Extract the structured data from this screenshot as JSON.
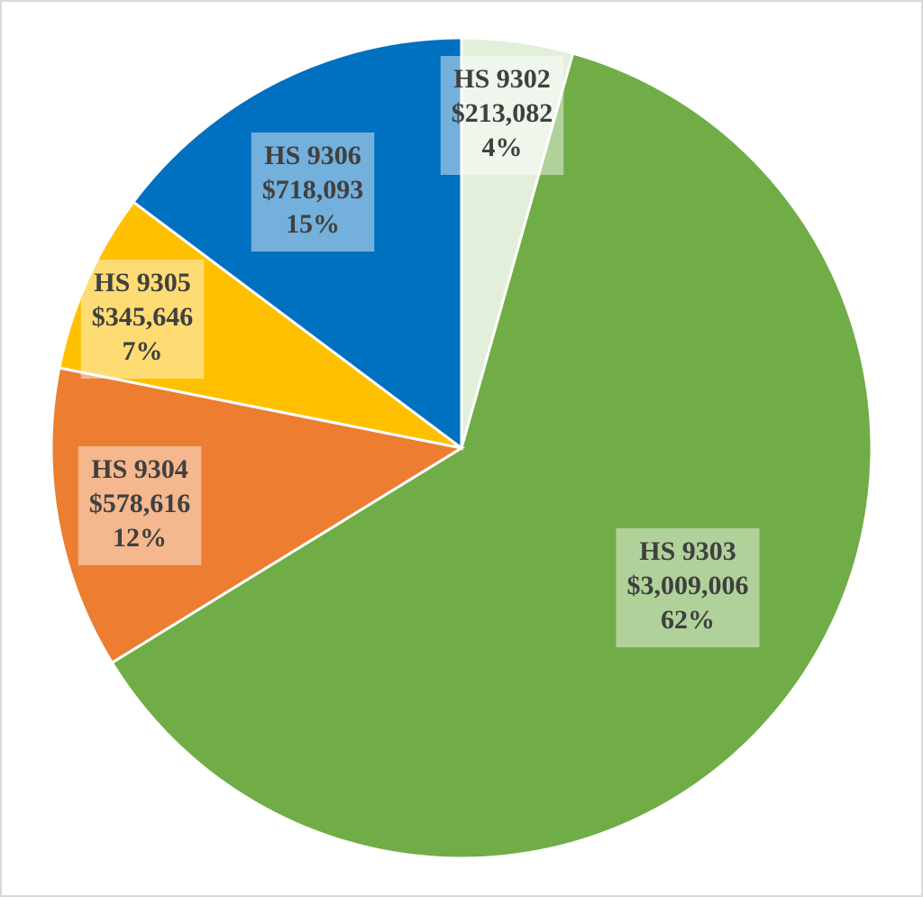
{
  "chart_data": {
    "type": "pie",
    "categories": [
      "HS 9302",
      "HS 9303",
      "HS 9304",
      "HS 9305",
      "HS 9306"
    ],
    "values": [
      213082,
      3009006,
      578616,
      345646,
      718093
    ],
    "value_labels": [
      "$213,082",
      "$3,009,006",
      "$578,616",
      "$345,646",
      "$718,093"
    ],
    "percents": [
      {
        "value": 4,
        "label": "4%"
      },
      {
        "value": 62,
        "label": "62%"
      },
      {
        "value": 12,
        "label": "12%"
      },
      {
        "value": 7,
        "label": "7%"
      },
      {
        "value": 15,
        "label": "15%"
      }
    ],
    "colors": [
      "#e2efda",
      "#70ad47",
      "#ed7d31",
      "#ffc000",
      "#0070c0"
    ],
    "start_angle": 0,
    "direction": "clockwise"
  }
}
